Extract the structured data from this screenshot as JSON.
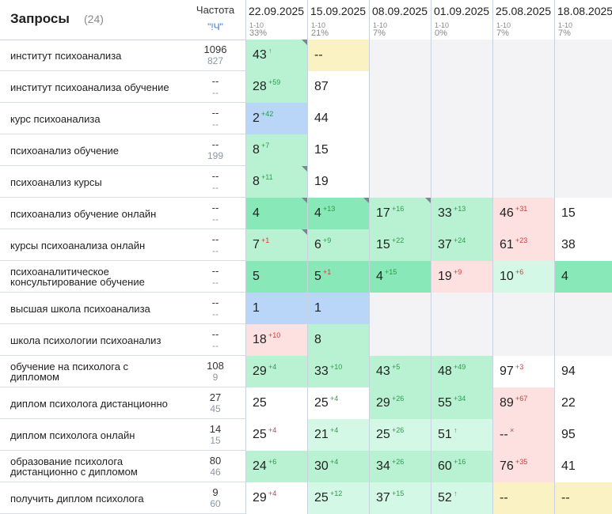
{
  "header": {
    "queries_title": "Запросы",
    "queries_count": "(24)",
    "frequency_title": "Частота",
    "frequency_mode": "\"!Ч\""
  },
  "dates": [
    {
      "date": "22.09.2025",
      "range": "1-10",
      "percent": "33%"
    },
    {
      "date": "15.09.2025",
      "range": "1-10",
      "percent": "21%"
    },
    {
      "date": "08.09.2025",
      "range": "1-10",
      "percent": "7%"
    },
    {
      "date": "01.09.2025",
      "range": "1-10",
      "percent": "0%"
    },
    {
      "date": "25.08.2025",
      "range": "1-10",
      "percent": "7%"
    },
    {
      "date": "18.08.2025",
      "range": "1-10",
      "percent": "7%"
    }
  ],
  "rows": [
    {
      "query": "институт психоанализа",
      "freq1": "1096",
      "freq2": "827",
      "cells": [
        {
          "v": "43",
          "d": "↑",
          "dir": "up",
          "bg": "green"
        },
        {
          "v": "--",
          "d": "",
          "dir": "",
          "bg": "yellow"
        },
        {
          "v": "",
          "d": "",
          "dir": "",
          "bg": "gray"
        },
        {
          "v": "",
          "d": "",
          "dir": "",
          "bg": "gray"
        },
        {
          "v": "",
          "d": "",
          "dir": "",
          "bg": "gray"
        },
        {
          "v": "",
          "d": "",
          "dir": "",
          "bg": "gray"
        }
      ]
    },
    {
      "query": "институт психоанализа обучение",
      "freq1": "--",
      "freq2": "--",
      "cells": [
        {
          "v": "28",
          "d": "+59",
          "dir": "up",
          "bg": "green"
        },
        {
          "v": "87",
          "d": "",
          "dir": "",
          "bg": "white"
        },
        {
          "v": "",
          "d": "",
          "dir": "",
          "bg": "gray"
        },
        {
          "v": "",
          "d": "",
          "dir": "",
          "bg": "gray"
        },
        {
          "v": "",
          "d": "",
          "dir": "",
          "bg": "gray"
        },
        {
          "v": "",
          "d": "",
          "dir": "",
          "bg": "gray"
        }
      ]
    },
    {
      "query": "курс психоанализа",
      "freq1": "--",
      "freq2": "--",
      "cells": [
        {
          "v": "2",
          "d": "+42",
          "dir": "up",
          "bg": "blue"
        },
        {
          "v": "44",
          "d": "",
          "dir": "",
          "bg": "white"
        },
        {
          "v": "",
          "d": "",
          "dir": "",
          "bg": "gray"
        },
        {
          "v": "",
          "d": "",
          "dir": "",
          "bg": "gray"
        },
        {
          "v": "",
          "d": "",
          "dir": "",
          "bg": "gray"
        },
        {
          "v": "",
          "d": "",
          "dir": "",
          "bg": "gray"
        }
      ]
    },
    {
      "query": "психоанализ обучение",
      "freq1": "--",
      "freq2": "199",
      "cells": [
        {
          "v": "8",
          "d": "+7",
          "dir": "up",
          "bg": "green"
        },
        {
          "v": "15",
          "d": "",
          "dir": "",
          "bg": "white"
        },
        {
          "v": "",
          "d": "",
          "dir": "",
          "bg": "gray"
        },
        {
          "v": "",
          "d": "",
          "dir": "",
          "bg": "gray"
        },
        {
          "v": "",
          "d": "",
          "dir": "",
          "bg": "gray"
        },
        {
          "v": "",
          "d": "",
          "dir": "",
          "bg": "gray"
        }
      ]
    },
    {
      "query": "психоанализ курсы",
      "freq1": "--",
      "freq2": "--",
      "cells": [
        {
          "v": "8",
          "d": "+11",
          "dir": "up",
          "bg": "green"
        },
        {
          "v": "19",
          "d": "",
          "dir": "",
          "bg": "white"
        },
        {
          "v": "",
          "d": "",
          "dir": "",
          "bg": "gray"
        },
        {
          "v": "",
          "d": "",
          "dir": "",
          "bg": "gray"
        },
        {
          "v": "",
          "d": "",
          "dir": "",
          "bg": "gray"
        },
        {
          "v": "",
          "d": "",
          "dir": "",
          "bg": "gray"
        }
      ]
    },
    {
      "query": "психоанализ обучение онлайн",
      "freq1": "--",
      "freq2": "--",
      "cells": [
        {
          "v": "4",
          "d": "",
          "dir": "",
          "bg": "green2"
        },
        {
          "v": "4",
          "d": "+13",
          "dir": "up",
          "bg": "green2"
        },
        {
          "v": "17",
          "d": "+16",
          "dir": "up",
          "bg": "green"
        },
        {
          "v": "33",
          "d": "+13",
          "dir": "up",
          "bg": "green"
        },
        {
          "v": "46",
          "d": "+31",
          "dir": "dn",
          "bg": "red"
        },
        {
          "v": "15",
          "d": "",
          "dir": "",
          "bg": "white"
        }
      ]
    },
    {
      "query": "курсы психоанализа онлайн",
      "freq1": "--",
      "freq2": "--",
      "cells": [
        {
          "v": "7",
          "d": "+1",
          "dir": "dn",
          "bg": "green"
        },
        {
          "v": "6",
          "d": "+9",
          "dir": "up",
          "bg": "green"
        },
        {
          "v": "15",
          "d": "+22",
          "dir": "up",
          "bg": "green"
        },
        {
          "v": "37",
          "d": "+24",
          "dir": "up",
          "bg": "green"
        },
        {
          "v": "61",
          "d": "+23",
          "dir": "dn",
          "bg": "red"
        },
        {
          "v": "38",
          "d": "",
          "dir": "",
          "bg": "white"
        }
      ]
    },
    {
      "query": "психоаналитическое консультирование обучение",
      "freq1": "--",
      "freq2": "--",
      "cells": [
        {
          "v": "5",
          "d": "",
          "dir": "",
          "bg": "green2"
        },
        {
          "v": "5",
          "d": "+1",
          "dir": "dn",
          "bg": "green2"
        },
        {
          "v": "4",
          "d": "+15",
          "dir": "up",
          "bg": "green2"
        },
        {
          "v": "19",
          "d": "+9",
          "dir": "dn",
          "bg": "red"
        },
        {
          "v": "10",
          "d": "+6",
          "dir": "dn",
          "bg": "lgreen"
        },
        {
          "v": "4",
          "d": "",
          "dir": "",
          "bg": "green2"
        }
      ]
    },
    {
      "query": "высшая школа психоанализа",
      "freq1": "--",
      "freq2": "--",
      "cells": [
        {
          "v": "1",
          "d": "",
          "dir": "",
          "bg": "blue"
        },
        {
          "v": "1",
          "d": "",
          "dir": "",
          "bg": "blue"
        },
        {
          "v": "",
          "d": "",
          "dir": "",
          "bg": "gray"
        },
        {
          "v": "",
          "d": "",
          "dir": "",
          "bg": "gray"
        },
        {
          "v": "",
          "d": "",
          "dir": "",
          "bg": "gray"
        },
        {
          "v": "",
          "d": "",
          "dir": "",
          "bg": "gray"
        }
      ]
    },
    {
      "query": "школа психологии психоанализ",
      "freq1": "--",
      "freq2": "--",
      "cells": [
        {
          "v": "18",
          "d": "+10",
          "dir": "dn",
          "bg": "red"
        },
        {
          "v": "8",
          "d": "",
          "dir": "",
          "bg": "green"
        },
        {
          "v": "",
          "d": "",
          "dir": "",
          "bg": "gray"
        },
        {
          "v": "",
          "d": "",
          "dir": "",
          "bg": "gray"
        },
        {
          "v": "",
          "d": "",
          "dir": "",
          "bg": "gray"
        },
        {
          "v": "",
          "d": "",
          "dir": "",
          "bg": "gray"
        }
      ]
    },
    {
      "query": "обучение на психолога с дипломом",
      "freq1": "108",
      "freq2": "9",
      "cells": [
        {
          "v": "29",
          "d": "+4",
          "dir": "up",
          "bg": "green"
        },
        {
          "v": "33",
          "d": "+10",
          "dir": "up",
          "bg": "green"
        },
        {
          "v": "43",
          "d": "+5",
          "dir": "up",
          "bg": "green"
        },
        {
          "v": "48",
          "d": "+49",
          "dir": "up",
          "bg": "green"
        },
        {
          "v": "97",
          "d": "+3",
          "dir": "dn",
          "bg": "white"
        },
        {
          "v": "94",
          "d": "",
          "dir": "",
          "bg": "white"
        }
      ]
    },
    {
      "query": "диплом психолога дистанционно",
      "freq1": "27",
      "freq2": "45",
      "cells": [
        {
          "v": "25",
          "d": "",
          "dir": "",
          "bg": "white"
        },
        {
          "v": "25",
          "d": "+4",
          "dir": "up",
          "bg": "white"
        },
        {
          "v": "29",
          "d": "+26",
          "dir": "up",
          "bg": "green"
        },
        {
          "v": "55",
          "d": "+34",
          "dir": "up",
          "bg": "green"
        },
        {
          "v": "89",
          "d": "+67",
          "dir": "dn",
          "bg": "red"
        },
        {
          "v": "22",
          "d": "",
          "dir": "",
          "bg": "white"
        }
      ]
    },
    {
      "query": "диплом психолога онлайн",
      "freq1": "14",
      "freq2": "15",
      "cells": [
        {
          "v": "25",
          "d": "+4",
          "dir": "dn",
          "bg": "white"
        },
        {
          "v": "21",
          "d": "+4",
          "dir": "up",
          "bg": "lgreen"
        },
        {
          "v": "25",
          "d": "+26",
          "dir": "up",
          "bg": "lgreen"
        },
        {
          "v": "51",
          "d": "↑",
          "dir": "up",
          "bg": "lgreen"
        },
        {
          "v": "--",
          "d": "×",
          "dir": "dn",
          "bg": "red"
        },
        {
          "v": "95",
          "d": "",
          "dir": "",
          "bg": "white"
        }
      ]
    },
    {
      "query": "образование психолога дистанционно с дипломом",
      "freq1": "80",
      "freq2": "46",
      "cells": [
        {
          "v": "24",
          "d": "+6",
          "dir": "up",
          "bg": "green"
        },
        {
          "v": "30",
          "d": "+4",
          "dir": "up",
          "bg": "green"
        },
        {
          "v": "34",
          "d": "+26",
          "dir": "up",
          "bg": "green"
        },
        {
          "v": "60",
          "d": "+16",
          "dir": "up",
          "bg": "green"
        },
        {
          "v": "76",
          "d": "+35",
          "dir": "dn",
          "bg": "red"
        },
        {
          "v": "41",
          "d": "",
          "dir": "",
          "bg": "white"
        }
      ]
    },
    {
      "query": "получить диплом психолога",
      "freq1": "9",
      "freq2": "60",
      "cells": [
        {
          "v": "29",
          "d": "+4",
          "dir": "dn",
          "bg": "white"
        },
        {
          "v": "25",
          "d": "+12",
          "dir": "up",
          "bg": "lgreen"
        },
        {
          "v": "37",
          "d": "+15",
          "dir": "up",
          "bg": "lgreen"
        },
        {
          "v": "52",
          "d": "↑",
          "dir": "up",
          "bg": "lgreen"
        },
        {
          "v": "--",
          "d": "",
          "dir": "",
          "bg": "yellow"
        },
        {
          "v": "--",
          "d": "",
          "dir": "",
          "bg": "yellow"
        }
      ]
    }
  ],
  "colors": {
    "green": "#b9f2d2",
    "green2": "#88e8b8",
    "lgreen": "#d4f8e6",
    "blue": "#b9d5f8",
    "red": "#fde0e0",
    "yellow": "#fbf2c4",
    "gray": "#f3f3f6",
    "delta_up": "#2a9d4a",
    "delta_down": "#d43b3b",
    "mode_link": "#3b7bd6"
  }
}
